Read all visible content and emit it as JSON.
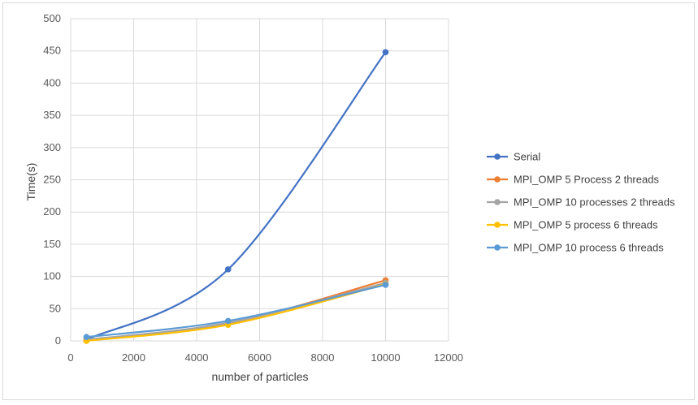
{
  "chart_data": {
    "type": "line",
    "title": "",
    "xlabel": "number of particles",
    "ylabel": "Time(s)",
    "xlim": [
      0,
      12000
    ],
    "ylim": [
      0,
      500
    ],
    "x_ticks": [
      0,
      2000,
      4000,
      6000,
      8000,
      10000,
      12000
    ],
    "y_ticks": [
      0,
      50,
      100,
      150,
      200,
      250,
      300,
      350,
      400,
      450,
      500
    ],
    "grid": true,
    "legend_position": "right",
    "smooth": true,
    "x": [
      500,
      5000,
      10000
    ],
    "series": [
      {
        "name": "Serial",
        "color": "#4472c4",
        "values": [
          2,
          111,
          448
        ]
      },
      {
        "name": "MPI_OMP 5 Process 2 threads",
        "color": "#ed7d31",
        "values": [
          1,
          27,
          94
        ]
      },
      {
        "name": "MPI_OMP 10 processes 2 threads",
        "color": "#a5a5a5",
        "values": [
          2,
          28,
          90
        ]
      },
      {
        "name": "MPI_OMP 5 process 6 threads",
        "color": "#ffc000",
        "values": [
          0,
          25,
          88
        ]
      },
      {
        "name": "MPI_OMP 10 process 6 threads",
        "color": "#5b9bd5",
        "values": [
          6,
          31,
          87
        ]
      }
    ]
  }
}
